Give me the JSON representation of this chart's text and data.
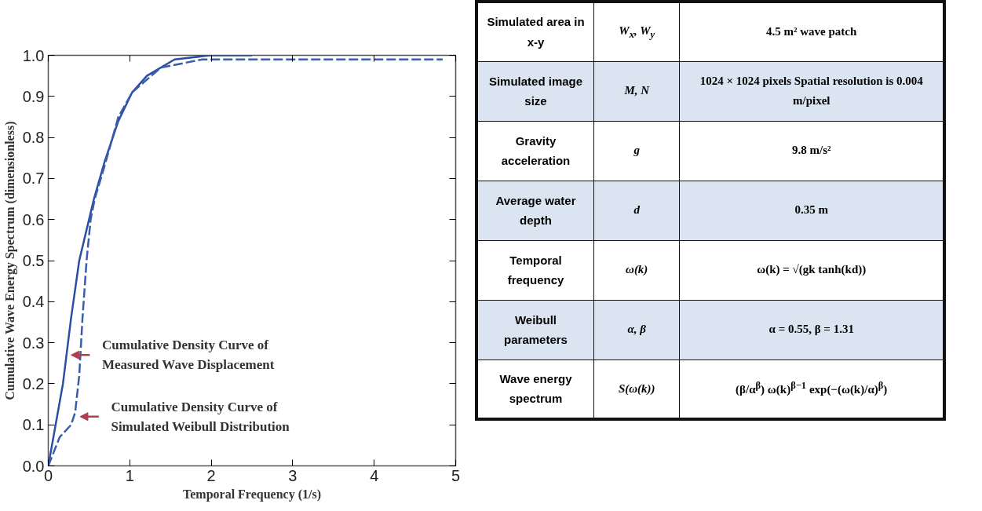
{
  "chart_data": [
    {
      "type": "line",
      "xlabel": "Temporal Frequency (1/s)",
      "ylabel": "Cumulative Wave Energy Spectrum (dimensionless)",
      "xlim": [
        0,
        5
      ],
      "ylim": [
        0,
        1
      ],
      "xticks": [
        0,
        1,
        2,
        3,
        4,
        5
      ],
      "yticks": [
        {
          "value": 0,
          "label": "0.0"
        },
        {
          "value": 0.1,
          "label": "0.1"
        },
        {
          "value": 0.2,
          "label": "0.2"
        },
        {
          "value": 0.3,
          "label": "0.3"
        },
        {
          "value": 0.4,
          "label": "0.4"
        },
        {
          "value": 0.5,
          "label": "0.5"
        },
        {
          "value": 0.6,
          "label": "0.6"
        },
        {
          "value": 0.7,
          "label": "0.7"
        },
        {
          "value": 0.8,
          "label": "0.8"
        },
        {
          "value": 0.9,
          "label": "0.9"
        },
        {
          "value": 1,
          "label": "1.0"
        }
      ],
      "grid": false,
      "marker": "none",
      "series": [
        {
          "color": "#2b4fa0",
          "line_style": "solid",
          "x": [
            0,
            0.18,
            0.28,
            0.38,
            0.56,
            0.69,
            0.86,
            1.03,
            1.21,
            1.55,
            1.99,
            2.5
          ],
          "values": [
            0,
            0.2,
            0.36,
            0.5,
            0.65,
            0.74,
            0.84,
            0.91,
            0.95,
            0.99,
            1.0,
            1.0
          ]
        },
        {
          "color": "#3a5cab",
          "line_style": "dashed",
          "x": [
            0,
            0.14,
            0.28,
            0.33,
            0.38,
            0.42,
            0.47,
            0.52,
            0.57,
            0.69,
            0.86,
            1.03,
            1.38,
            1.89,
            2.92,
            4.84
          ],
          "values": [
            0,
            0.07,
            0.1,
            0.13,
            0.22,
            0.36,
            0.5,
            0.6,
            0.65,
            0.73,
            0.85,
            0.91,
            0.97,
            0.99,
            0.99,
            0.99
          ]
        }
      ],
      "annotations": [
        {
          "text": "Cumulative Density Curve of\nMeasured Wave Displacement",
          "x": 0.26,
          "y": 0.27
        },
        {
          "text": "Cumulative Density Curve of\nSimulated Weibull Distribution",
          "x": 0.37,
          "y": 0.12
        }
      ]
    },
    {
      "type": "other",
      "annotations": [
        "Simulated area in x-y",
        "W$_{x}$, W$_{y}$",
        "4.5 m² wave patch",
        "Simulated image size",
        "M, N",
        "1024 × 1024 pixels Spatial resolution is 0.004 m/pixel",
        "Gravity acceleration",
        "g",
        "9.8 m/s²",
        "Average water depth",
        "d",
        "0.35 m",
        "Temporal frequency",
        "ω(k)",
        "ω(k) = √(gk tanh(kd))",
        "Weibull parameters",
        "α, β",
        "α = 0.55, β = 1.31",
        "Wave energy spectrum",
        "S(ω(k))",
        "(β/α$^{β}$) ω(k)$^{β−1}$ exp(−(ω(k)/α)$^{β}$)"
      ]
    }
  ]
}
